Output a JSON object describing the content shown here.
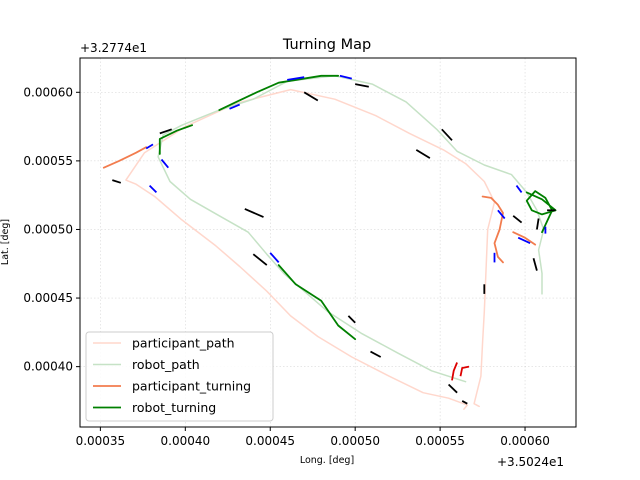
{
  "chart_data": {
    "type": "line",
    "title": "Turning Map",
    "xlabel": "Long. [deg]",
    "ylabel": "Lat. [deg]",
    "x_offset_label": "+3.5024e1",
    "y_offset_label": "+3.2774e1",
    "xlim": [
      0.000338,
      0.00063
    ],
    "ylim": [
      0.000356,
      0.000625
    ],
    "xticks": [
      0.00035,
      0.0004,
      0.00045,
      0.0005,
      0.00055,
      0.0006
    ],
    "xtick_labels": [
      "0.00035",
      "0.00040",
      "0.00045",
      "0.00050",
      "0.00055",
      "0.00060"
    ],
    "yticks": [
      0.0004,
      0.00045,
      0.0005,
      0.00055,
      0.0006
    ],
    "ytick_labels": [
      "0.00040",
      "0.00045",
      "0.00050",
      "0.00055",
      "0.00060"
    ],
    "grid": true,
    "legend_position": "lower-left",
    "series": [
      {
        "name": "participant_path",
        "color": "#ffd7cc",
        "width": 1.5,
        "points": [
          [
            0.000564,
            0.000369
          ],
          [
            0.000566,
            0.000372
          ],
          [
            0.000555,
            0.000377
          ],
          [
            0.00054,
            0.000381
          ],
          [
            0.00052,
            0.000393
          ],
          [
            0.000498,
            0.000407
          ],
          [
            0.000478,
            0.000422
          ],
          [
            0.000462,
            0.000437
          ],
          [
            0.000448,
            0.000455
          ],
          [
            0.000432,
            0.000473
          ],
          [
            0.000418,
            0.000488
          ],
          [
            0.000398,
            0.000507
          ],
          [
            0.000382,
            0.000524
          ],
          [
            0.000371,
            0.000533
          ],
          [
            0.000365,
            0.000536
          ],
          [
            0.000376,
            0.000556
          ],
          [
            0.0004,
            0.000575
          ],
          [
            0.00043,
            0.000592
          ],
          [
            0.000462,
            0.000602
          ],
          [
            0.000488,
            0.000595
          ],
          [
            0.000512,
            0.000583
          ],
          [
            0.000532,
            0.00057
          ],
          [
            0.000552,
            0.000558
          ],
          [
            0.000565,
            0.000548
          ],
          [
            0.000576,
            0.000535
          ],
          [
            0.000582,
            0.00052
          ],
          [
            0.000578,
            0.0005
          ],
          [
            0.000577,
            0.00047
          ],
          [
            0.000576,
            0.00044
          ],
          [
            0.000575,
            0.000418
          ],
          [
            0.000574,
            0.000393
          ],
          [
            0.00057,
            0.000373
          ],
          [
            0.000573,
            0.000371
          ]
        ]
      },
      {
        "name": "robot_path",
        "color": "#c6e2c6",
        "width": 1.5,
        "points": [
          [
            0.000565,
            0.000389
          ],
          [
            0.000545,
            0.000397
          ],
          [
            0.000525,
            0.00041
          ],
          [
            0.000504,
            0.000424
          ],
          [
            0.000484,
            0.00044
          ],
          [
            0.00047,
            0.000455
          ],
          [
            0.000458,
            0.000468
          ],
          [
            0.000448,
            0.000482
          ],
          [
            0.000437,
            0.000498
          ],
          [
            0.00042,
            0.00051
          ],
          [
            0.000403,
            0.000522
          ],
          [
            0.000391,
            0.000535
          ],
          [
            0.000384,
            0.000553
          ],
          [
            0.000387,
            0.000569
          ],
          [
            0.000398,
            0.000576
          ],
          [
            0.00042,
            0.000587
          ],
          [
            0.00044,
            0.000595
          ],
          [
            0.00046,
            0.000608
          ],
          [
            0.000488,
            0.000612
          ],
          [
            0.00051,
            0.000606
          ],
          [
            0.00053,
            0.000593
          ],
          [
            0.000548,
            0.000573
          ],
          [
            0.00056,
            0.000557
          ],
          [
            0.000576,
            0.000547
          ],
          [
            0.000592,
            0.00054
          ],
          [
            0.000601,
            0.000527
          ],
          [
            0.000607,
            0.000514
          ],
          [
            0.000611,
            0.0005
          ],
          [
            0.000608,
            0.000485
          ],
          [
            0.00061,
            0.000468
          ],
          [
            0.00061,
            0.000453
          ]
        ]
      },
      {
        "name": "participant_turning",
        "color": "#f27c4e",
        "width": 1.8,
        "segments": [
          [
            [
              0.000352,
              0.000545
            ],
            [
              0.000361,
              0.00055
            ],
            [
              0.000371,
              0.000556
            ],
            [
              0.000377,
              0.00056
            ]
          ],
          [
            [
              0.000575,
              0.000524
            ],
            [
              0.00058,
              0.000523
            ],
            [
              0.000584,
              0.000518
            ],
            [
              0.000587,
              0.000512
            ],
            [
              0.000585,
              0.0005
            ],
            [
              0.000582,
              0.00049
            ],
            [
              0.000584,
              0.00048
            ],
            [
              0.000587,
              0.000476
            ]
          ],
          [
            [
              0.000593,
              0.000498
            ],
            [
              0.0006,
              0.000494
            ],
            [
              0.000606,
              0.000489
            ]
          ]
        ]
      },
      {
        "name": "robot_turning",
        "color": "#008000",
        "width": 1.8,
        "segments": [
          [
            [
              0.00042,
              0.000587
            ],
            [
              0.00043,
              0.000593
            ],
            [
              0.000442,
              0.0006
            ],
            [
              0.000455,
              0.000607
            ],
            [
              0.00048,
              0.000612
            ],
            [
              0.00049,
              0.000612
            ]
          ],
          [
            [
              0.000385,
              0.000555
            ],
            [
              0.000385,
              0.000566
            ],
            [
              0.000395,
              0.000572
            ],
            [
              0.000404,
              0.000576
            ]
          ],
          [
            [
              0.000455,
              0.000474
            ],
            [
              0.000465,
              0.00046
            ],
            [
              0.00048,
              0.000448
            ],
            [
              0.00049,
              0.00043
            ],
            [
              0.0005,
              0.00042
            ]
          ],
          [
            [
              0.000601,
              0.000527
            ],
            [
              0.00061,
              0.000522
            ],
            [
              0.000618,
              0.000514
            ],
            [
              0.00061,
              0.000511
            ],
            [
              0.000604,
              0.000514
            ],
            [
              0.000601,
              0.000521
            ],
            [
              0.000606,
              0.000528
            ],
            [
              0.000612,
              0.000523
            ],
            [
              0.000616,
              0.000514
            ],
            [
              0.00061,
              0.000498
            ]
          ]
        ]
      }
    ],
    "extra_marks": [
      {
        "color": "#000000",
        "dash": true,
        "points": [
          [
            0.000357,
            0.000536
          ],
          [
            0.000362,
            0.000534
          ]
        ]
      },
      {
        "color": "#000000",
        "dash": true,
        "points": [
          [
            0.000385,
            0.00057
          ],
          [
            0.000392,
            0.000573
          ]
        ]
      },
      {
        "color": "#000000",
        "dash": true,
        "points": [
          [
            0.000435,
            0.000515
          ],
          [
            0.000446,
            0.000509
          ]
        ]
      },
      {
        "color": "#000000",
        "dash": true,
        "points": [
          [
            0.00044,
            0.000482
          ],
          [
            0.000448,
            0.000474
          ]
        ]
      },
      {
        "color": "#000000",
        "dash": true,
        "points": [
          [
            0.00047,
            0.0006
          ],
          [
            0.000478,
            0.000594
          ]
        ]
      },
      {
        "color": "#000000",
        "dash": true,
        "points": [
          [
            0.0005,
            0.000606
          ],
          [
            0.000508,
            0.000604
          ]
        ]
      },
      {
        "color": "#000000",
        "dash": true,
        "points": [
          [
            0.000496,
            0.000437
          ],
          [
            0.0005,
            0.000432
          ]
        ]
      },
      {
        "color": "#000000",
        "dash": true,
        "points": [
          [
            0.000509,
            0.000411
          ],
          [
            0.000515,
            0.000407
          ]
        ]
      },
      {
        "color": "#000000",
        "dash": true,
        "points": [
          [
            0.000536,
            0.000558
          ],
          [
            0.000544,
            0.000552
          ]
        ]
      },
      {
        "color": "#000000",
        "dash": true,
        "points": [
          [
            0.000551,
            0.000573
          ],
          [
            0.000557,
            0.000565
          ]
        ]
      },
      {
        "color": "#000000",
        "dash": true,
        "points": [
          [
            0.000555,
            0.000387
          ],
          [
            0.00056,
            0.000381
          ]
        ]
      },
      {
        "color": "#000000",
        "dash": true,
        "points": [
          [
            0.000563,
            0.000375
          ],
          [
            0.000566,
            0.000373
          ]
        ]
      },
      {
        "color": "#000000",
        "dash": true,
        "points": [
          [
            0.000576,
            0.00046
          ],
          [
            0.000576,
            0.000453
          ]
        ]
      },
      {
        "color": "#000000",
        "dash": true,
        "points": [
          [
            0.000593,
            0.00051
          ],
          [
            0.000598,
            0.000505
          ]
        ]
      },
      {
        "color": "#000000",
        "dash": true,
        "points": [
          [
            0.000605,
            0.000479
          ],
          [
            0.000607,
            0.00047
          ]
        ]
      },
      {
        "color": "#000000",
        "dash": true,
        "points": [
          [
            0.000607,
            0.0005
          ],
          [
            0.000608,
            0.000508
          ]
        ]
      },
      {
        "color": "#000000",
        "dash": true,
        "points": [
          [
            0.000613,
            0.000514
          ],
          [
            0.000618,
            0.000514
          ]
        ]
      },
      {
        "color": "#0000ff",
        "dash": true,
        "points": [
          [
            0.000379,
            0.000532
          ],
          [
            0.000383,
            0.000527
          ]
        ]
      },
      {
        "color": "#0000ff",
        "dash": true,
        "points": [
          [
            0.000377,
            0.000559
          ],
          [
            0.000381,
            0.000562
          ]
        ]
      },
      {
        "color": "#0000ff",
        "dash": true,
        "points": [
          [
            0.000386,
            0.000551
          ],
          [
            0.00039,
            0.000545
          ]
        ]
      },
      {
        "color": "#0000ff",
        "dash": true,
        "points": [
          [
            0.000426,
            0.000588
          ],
          [
            0.000432,
            0.000591
          ]
        ]
      },
      {
        "color": "#0000ff",
        "dash": true,
        "points": [
          [
            0.00046,
            0.000609
          ],
          [
            0.00047,
            0.000611
          ]
        ]
      },
      {
        "color": "#0000ff",
        "dash": true,
        "points": [
          [
            0.000491,
            0.000612
          ],
          [
            0.000498,
            0.00061
          ]
        ]
      },
      {
        "color": "#0000ff",
        "dash": true,
        "points": [
          [
            0.00045,
            0.000483
          ],
          [
            0.000455,
            0.000476
          ]
        ]
      },
      {
        "color": "#0000ff",
        "dash": true,
        "points": [
          [
            0.000584,
            0.000514
          ],
          [
            0.000588,
            0.000508
          ]
        ]
      },
      {
        "color": "#0000ff",
        "dash": true,
        "points": [
          [
            0.000596,
            0.000494
          ],
          [
            0.000603,
            0.00049
          ]
        ]
      },
      {
        "color": "#0000ff",
        "dash": true,
        "points": [
          [
            0.000582,
            0.000483
          ],
          [
            0.000582,
            0.000476
          ]
        ]
      },
      {
        "color": "#0000ff",
        "dash": true,
        "points": [
          [
            0.000595,
            0.000532
          ],
          [
            0.000598,
            0.000527
          ]
        ]
      },
      {
        "color": "#0000ff",
        "dash": true,
        "points": [
          [
            0.000612,
            0.000502
          ],
          [
            0.000612,
            0.000497
          ]
        ]
      },
      {
        "color": "#dd0000",
        "dash": false,
        "points": [
          [
            0.00056,
            0.000403
          ],
          [
            0.000558,
            0.000397
          ],
          [
            0.000557,
            0.00039
          ]
        ]
      },
      {
        "color": "#dd0000",
        "dash": false,
        "points": [
          [
            0.000562,
            0.000393
          ],
          [
            0.000563,
            0.000399
          ],
          [
            0.000567,
            0.0004
          ]
        ]
      }
    ]
  }
}
